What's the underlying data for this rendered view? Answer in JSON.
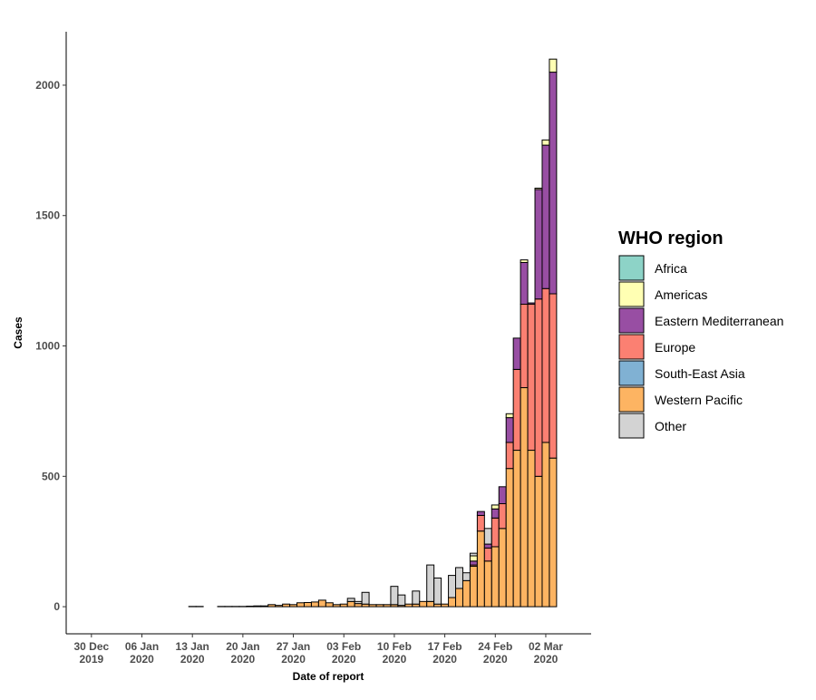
{
  "chart_data": {
    "type": "bar",
    "x_label": "Date of report",
    "y_label": "Cases",
    "legend_title": "WHO region",
    "x": [
      "2019-12-30",
      "2019-12-31",
      "2020-01-01",
      "2020-01-02",
      "2020-01-03",
      "2020-01-04",
      "2020-01-05",
      "2020-01-06",
      "2020-01-07",
      "2020-01-08",
      "2020-01-09",
      "2020-01-10",
      "2020-01-11",
      "2020-01-12",
      "2020-01-13",
      "2020-01-14",
      "2020-01-15",
      "2020-01-16",
      "2020-01-17",
      "2020-01-18",
      "2020-01-19",
      "2020-01-20",
      "2020-01-21",
      "2020-01-22",
      "2020-01-23",
      "2020-01-24",
      "2020-01-25",
      "2020-01-26",
      "2020-01-27",
      "2020-01-28",
      "2020-01-29",
      "2020-01-30",
      "2020-01-31",
      "2020-02-01",
      "2020-02-02",
      "2020-02-03",
      "2020-02-04",
      "2020-02-05",
      "2020-02-06",
      "2020-02-07",
      "2020-02-08",
      "2020-02-09",
      "2020-02-10",
      "2020-02-11",
      "2020-02-12",
      "2020-02-13",
      "2020-02-14",
      "2020-02-15",
      "2020-02-16",
      "2020-02-17",
      "2020-02-18",
      "2020-02-19",
      "2020-02-20",
      "2020-02-21",
      "2020-02-22",
      "2020-02-23",
      "2020-02-24",
      "2020-02-25",
      "2020-02-26",
      "2020-02-27",
      "2020-02-28",
      "2020-02-29",
      "2020-03-01",
      "2020-03-02",
      "2020-03-03"
    ],
    "series": [
      {
        "name": "Africa",
        "color": "#8dd3c7",
        "values": [
          0,
          0,
          0,
          0,
          0,
          0,
          0,
          0,
          0,
          0,
          0,
          0,
          0,
          0,
          0,
          0,
          0,
          0,
          0,
          0,
          0,
          0,
          0,
          0,
          0,
          0,
          0,
          0,
          0,
          0,
          0,
          0,
          0,
          0,
          0,
          0,
          0,
          0,
          0,
          0,
          0,
          0,
          0,
          0,
          0,
          0,
          0,
          0,
          0,
          0,
          0,
          0,
          0,
          0,
          0,
          0,
          0,
          0,
          0,
          0,
          0,
          0,
          0,
          0,
          0
        ]
      },
      {
        "name": "Americas",
        "color": "#ffffb3",
        "values": [
          0,
          0,
          0,
          0,
          0,
          0,
          0,
          0,
          0,
          0,
          0,
          0,
          0,
          0,
          0,
          0,
          0,
          0,
          0,
          0,
          0,
          0,
          0,
          0,
          0,
          0,
          0,
          0,
          0,
          0,
          0,
          0,
          0,
          0,
          0,
          0,
          0,
          0,
          0,
          0,
          0,
          0,
          0,
          0,
          0,
          0,
          0,
          0,
          0,
          0,
          0,
          0,
          0,
          20,
          0,
          0,
          15,
          0,
          15,
          0,
          10,
          0,
          5,
          20,
          50
        ]
      },
      {
        "name": "Eastern Mediterranean",
        "color": "#984ea3",
        "values": [
          0,
          0,
          0,
          0,
          0,
          0,
          0,
          0,
          0,
          0,
          0,
          0,
          0,
          0,
          0,
          0,
          0,
          0,
          0,
          0,
          0,
          0,
          0,
          0,
          0,
          0,
          0,
          0,
          0,
          0,
          0,
          0,
          0,
          0,
          0,
          0,
          0,
          0,
          0,
          0,
          0,
          0,
          0,
          0,
          0,
          0,
          0,
          0,
          0,
          0,
          0,
          0,
          0,
          15,
          15,
          15,
          35,
          65,
          95,
          120,
          160,
          5,
          420,
          550,
          850
        ]
      },
      {
        "name": "Europe",
        "color": "#fb8072",
        "values": [
          0,
          0,
          0,
          0,
          0,
          0,
          0,
          0,
          0,
          0,
          0,
          0,
          0,
          0,
          0,
          0,
          0,
          0,
          0,
          0,
          0,
          0,
          0,
          0,
          0,
          0,
          0,
          0,
          0,
          0,
          0,
          0,
          0,
          0,
          0,
          0,
          0,
          0,
          0,
          0,
          0,
          0,
          0,
          0,
          0,
          0,
          0,
          0,
          0,
          0,
          0,
          0,
          0,
          5,
          60,
          50,
          110,
          95,
          100,
          310,
          320,
          560,
          680,
          590,
          630
        ]
      },
      {
        "name": "South-East Asia",
        "color": "#80b1d3",
        "values": [
          0,
          0,
          0,
          0,
          0,
          0,
          0,
          0,
          0,
          0,
          0,
          0,
          0,
          0,
          0,
          0,
          0,
          0,
          0,
          0,
          0,
          0,
          0,
          0,
          0,
          0,
          0,
          0,
          0,
          0,
          0,
          0,
          0,
          0,
          0,
          0,
          0,
          0,
          0,
          0,
          0,
          0,
          0,
          0,
          0,
          0,
          0,
          0,
          0,
          0,
          0,
          0,
          0,
          0,
          0,
          0,
          0,
          0,
          0,
          0,
          0,
          0,
          0,
          0,
          0
        ]
      },
      {
        "name": "Western Pacific",
        "color": "#fdb462",
        "values": [
          0,
          0,
          0,
          0,
          0,
          0,
          0,
          0,
          0,
          0,
          0,
          0,
          0,
          0,
          1,
          1,
          0,
          0,
          1,
          1,
          1,
          1,
          2,
          3,
          3,
          8,
          5,
          10,
          8,
          15,
          16,
          18,
          25,
          15,
          8,
          10,
          20,
          12,
          10,
          8,
          8,
          8,
          8,
          5,
          10,
          10,
          20,
          20,
          10,
          10,
          35,
          70,
          100,
          155,
          290,
          175,
          230,
          300,
          530,
          600,
          840,
          600,
          500,
          630,
          570
        ]
      },
      {
        "name": "Other",
        "color": "#d3d3d3",
        "values": [
          0,
          0,
          0,
          0,
          0,
          0,
          0,
          0,
          0,
          0,
          0,
          0,
          0,
          0,
          0,
          0,
          0,
          0,
          0,
          0,
          0,
          0,
          0,
          0,
          0,
          0,
          0,
          0,
          0,
          0,
          0,
          0,
          0,
          0,
          0,
          0,
          12,
          8,
          45,
          0,
          0,
          0,
          70,
          40,
          0,
          50,
          0,
          140,
          100,
          0,
          85,
          80,
          30,
          10,
          0,
          60,
          0,
          0,
          0,
          0,
          0,
          0,
          0,
          0,
          0
        ]
      }
    ],
    "xlim": [
      "2019-12-26T12:00:00Z",
      "2020-03-08T07:00:00Z"
    ],
    "xticks": [
      {
        "value": "2019-12-30",
        "label": "30 Dec\n2019"
      },
      {
        "value": "2020-01-06",
        "label": "06 Jan\n2020"
      },
      {
        "value": "2020-01-13",
        "label": "13 Jan\n2020"
      },
      {
        "value": "2020-01-20",
        "label": "20 Jan\n2020"
      },
      {
        "value": "2020-01-27",
        "label": "27 Jan\n2020"
      },
      {
        "value": "2020-02-03",
        "label": "03 Feb\n2020"
      },
      {
        "value": "2020-02-10",
        "label": "10 Feb\n2020"
      },
      {
        "value": "2020-02-17",
        "label": "17 Feb\n2020"
      },
      {
        "value": "2020-02-24",
        "label": "24 Feb\n2020"
      },
      {
        "value": "2020-03-02",
        "label": "02 Mar\n2020"
      }
    ],
    "ylim": [
      -104,
      2205
    ],
    "yticks": [
      0,
      500,
      1000,
      1500,
      2000
    ],
    "grid": false,
    "legend": "right"
  }
}
